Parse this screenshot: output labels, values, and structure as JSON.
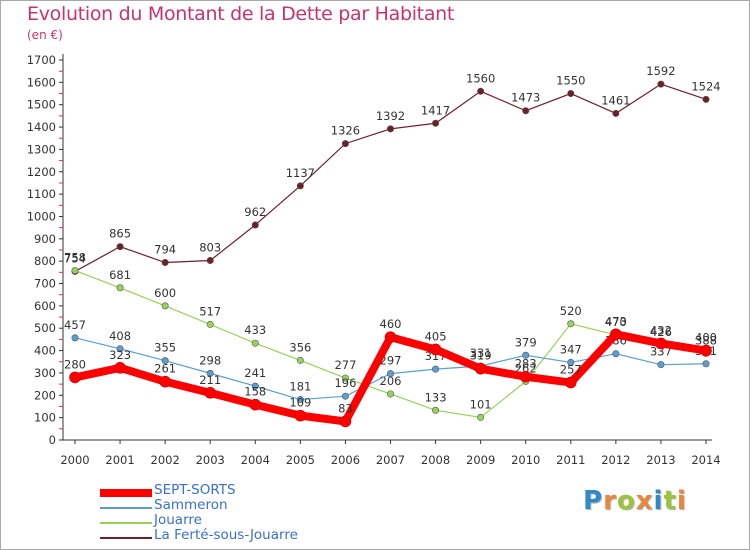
{
  "title": "Evolution du Montant de la Dette par Habitant",
  "subtitle": "(en €)",
  "logo": {
    "text": "Proxiti",
    "letters": [
      "P",
      "r",
      "o",
      "x",
      "i",
      "t",
      "i"
    ],
    "colors": [
      "#2f88c9",
      "#e8873a",
      "#9bc43a",
      "#e8873a",
      "#2f88c9",
      "#9bc43a",
      "#e8873a"
    ]
  },
  "chart_data": {
    "type": "line",
    "title": "Evolution du Montant de la Dette par Habitant",
    "subtitle": "(en €)",
    "x": [
      "2000",
      "2001",
      "2002",
      "2003",
      "2004",
      "2005",
      "2006",
      "2007",
      "2008",
      "2009",
      "2010",
      "2011",
      "2012",
      "2013",
      "2014"
    ],
    "ylim": [
      0,
      1700
    ],
    "yticks": [
      0,
      100,
      200,
      300,
      400,
      500,
      600,
      700,
      800,
      900,
      1000,
      1100,
      1200,
      1300,
      1400,
      1500,
      1600,
      1700
    ],
    "grid": false,
    "legend_position": "bottom-left",
    "series": [
      {
        "name": "La Ferté-sous-Jouarre",
        "color": "#6e1f2c",
        "width": 1.2,
        "values": [
          754,
          865,
          794,
          803,
          962,
          1137,
          1326,
          1392,
          1417,
          1560,
          1473,
          1550,
          1461,
          1592,
          1524
        ],
        "labels": [
          "754",
          "865",
          "794",
          "803",
          "962",
          "1137",
          "1326",
          "1392",
          "1417",
          "1560",
          "1473",
          "1550",
          "1461",
          "1592",
          "1524"
        ]
      },
      {
        "name": "Jouarre",
        "color": "#99d15a",
        "width": 1.2,
        "values": [
          758,
          681,
          600,
          517,
          433,
          356,
          277,
          206,
          133,
          101,
          262,
          520,
          470,
          426,
          388
        ],
        "labels": [
          "758",
          "681",
          "600",
          "517",
          "433",
          "356",
          "277",
          "206",
          "133",
          "101",
          "262",
          "520",
          "470",
          "426",
          "388"
        ]
      },
      {
        "name": "Sammeron",
        "color": "#5a9fd0",
        "width": 1.2,
        "values": [
          457,
          408,
          355,
          298,
          241,
          181,
          196,
          297,
          317,
          331,
          379,
          347,
          386,
          337,
          341
        ],
        "labels": [
          "457",
          "408",
          "355",
          "298",
          "241",
          "181",
          "196",
          "297",
          "317",
          "331",
          "379",
          "347",
          "386",
          "337",
          "341"
        ]
      },
      {
        "name": "SEPT-SORTS",
        "color": "#ff0000",
        "width": 8,
        "values": [
          280,
          323,
          261,
          211,
          158,
          109,
          83,
          460,
          405,
          319,
          283,
          257,
          473,
          432,
          400
        ],
        "labels": [
          "280",
          "323",
          "261",
          "211",
          "158",
          "109",
          "83",
          "460",
          "405",
          "319",
          "283",
          "257",
          "473",
          "432",
          "400"
        ]
      }
    ],
    "legend": [
      "SEPT-SORTS",
      "Sammeron",
      "Jouarre",
      "La Ferté-sous-Jouarre"
    ]
  }
}
